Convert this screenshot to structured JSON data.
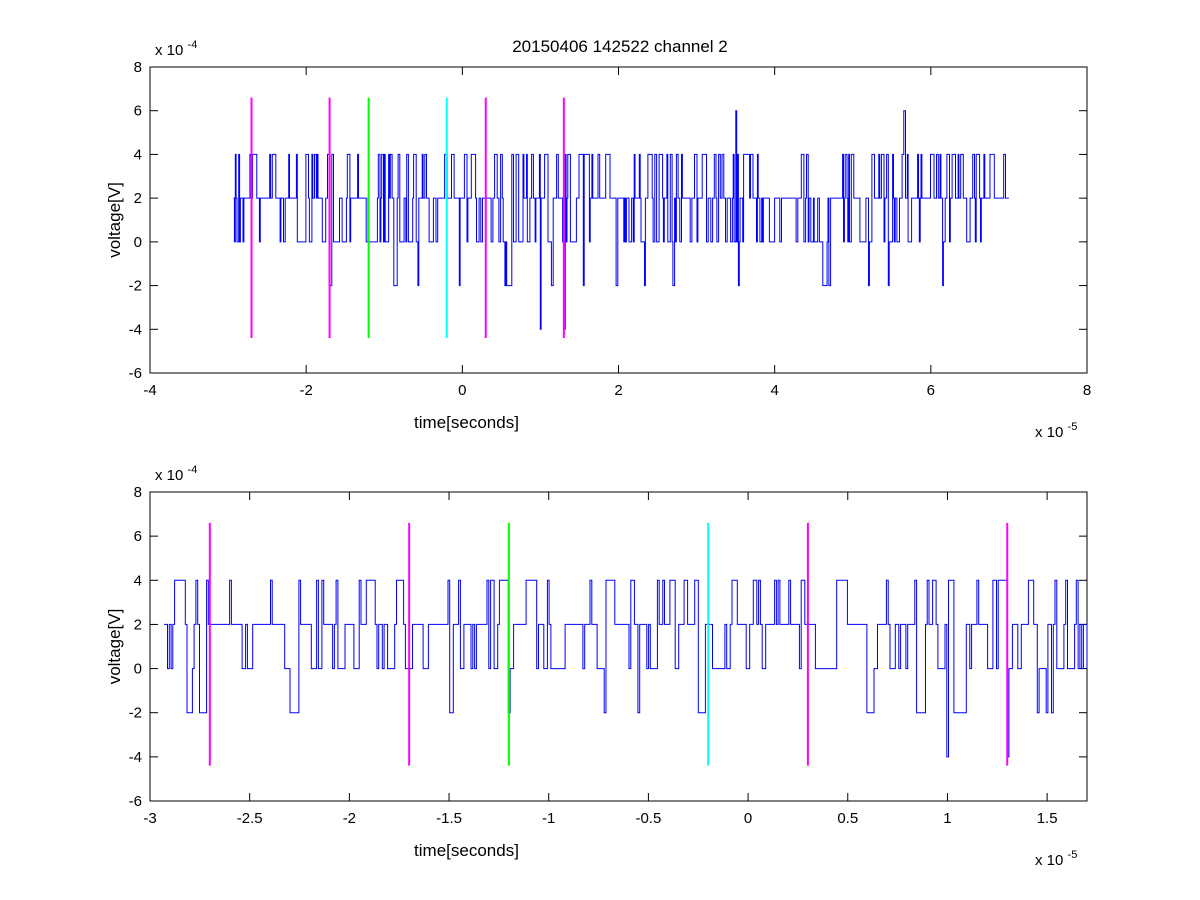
{
  "title": "20150406 142522 channel 2",
  "colors": {
    "trace": "#0000ff",
    "magenta": "#ff00ff",
    "green": "#00ff00",
    "cyan": "#00ffff"
  },
  "chart_data": [
    {
      "type": "line",
      "panel": "top",
      "xlabel": "time[seconds]",
      "ylabel": "voltage[V]",
      "x_exponent_label": "x 10",
      "x_exponent": "-5",
      "y_exponent_label": "x 10",
      "y_exponent": "-4",
      "xlim": [
        -4,
        8
      ],
      "ylim": [
        -6,
        8
      ],
      "xticks": [
        "-4",
        "-2",
        "0",
        "2",
        "4",
        "6",
        "8"
      ],
      "xtick_values": [
        -4,
        -2,
        0,
        2,
        4,
        6,
        8
      ],
      "yticks": [
        "-6",
        "-4",
        "-2",
        "0",
        "2",
        "4",
        "6",
        "8"
      ],
      "ytick_values": [
        -6,
        -4,
        -2,
        0,
        2,
        4,
        6,
        8
      ],
      "series": [
        {
          "values_note": "voltage trace sampled from about -2.9 to 7.0 (x 10^-5 s), values mostly 0, 2 or 4 (x 10^-4 V), with dips to -2 and -4 and peaks to 6"
        }
      ],
      "trace_x_range": [
        -2.93,
        7.0
      ],
      "trace_spikes": [
        {
          "x": 1.0,
          "y": -4
        },
        {
          "x": 1.3,
          "y": -4
        },
        {
          "x": 3.5,
          "y": 6
        },
        {
          "x": 5.65,
          "y": 6
        }
      ],
      "markers": [
        {
          "x": -2.7,
          "color": "magenta",
          "y_range": [
            -4.4,
            6.6
          ]
        },
        {
          "x": -1.7,
          "color": "magenta",
          "y_range": [
            -4.4,
            6.6
          ]
        },
        {
          "x": -1.2,
          "color": "green",
          "y_range": [
            -4.4,
            6.6
          ]
        },
        {
          "x": -0.2,
          "color": "cyan",
          "y_range": [
            -4.4,
            6.6
          ]
        },
        {
          "x": 0.3,
          "color": "magenta",
          "y_range": [
            -4.4,
            6.6
          ]
        },
        {
          "x": 1.3,
          "color": "magenta",
          "y_range": [
            -4.4,
            6.6
          ]
        }
      ]
    },
    {
      "type": "line",
      "panel": "bottom",
      "xlabel": "time[seconds]",
      "ylabel": "voltage[V]",
      "x_exponent_label": "x 10",
      "x_exponent": "-5",
      "y_exponent_label": "x 10",
      "y_exponent": "-4",
      "xlim": [
        -3.0,
        1.7
      ],
      "ylim": [
        -6,
        8
      ],
      "xticks": [
        "-3",
        "-2.5",
        "-2",
        "-1.5",
        "-1",
        "-0.5",
        "0",
        "0.5",
        "1",
        "1.5"
      ],
      "xtick_values": [
        -3,
        -2.5,
        -2,
        -1.5,
        -1,
        -0.5,
        0,
        0.5,
        1,
        1.5
      ],
      "yticks": [
        "-6",
        "-4",
        "-2",
        "0",
        "2",
        "4",
        "6",
        "8"
      ],
      "ytick_values": [
        -6,
        -4,
        -2,
        0,
        2,
        4,
        6,
        8
      ],
      "trace_x_range": [
        -2.93,
        1.7
      ],
      "trace_spikes": [
        {
          "x": -2.75,
          "y": -2
        },
        {
          "x": -2.3,
          "y": -2
        },
        {
          "x": -1.5,
          "y": -2
        },
        {
          "x": -1.2,
          "y": -2
        },
        {
          "x": 1.0,
          "y": -4
        },
        {
          "x": 1.3,
          "y": -4
        }
      ],
      "markers": [
        {
          "x": -2.7,
          "color": "magenta",
          "y_range": [
            -4.4,
            6.6
          ]
        },
        {
          "x": -1.7,
          "color": "magenta",
          "y_range": [
            -4.4,
            6.6
          ]
        },
        {
          "x": -1.2,
          "color": "green",
          "y_range": [
            -4.4,
            6.6
          ]
        },
        {
          "x": -0.2,
          "color": "cyan",
          "y_range": [
            -4.4,
            6.6
          ]
        },
        {
          "x": 0.3,
          "color": "magenta",
          "y_range": [
            -4.4,
            6.6
          ]
        },
        {
          "x": 1.3,
          "color": "magenta",
          "y_range": [
            -4.4,
            6.6
          ]
        }
      ]
    }
  ]
}
